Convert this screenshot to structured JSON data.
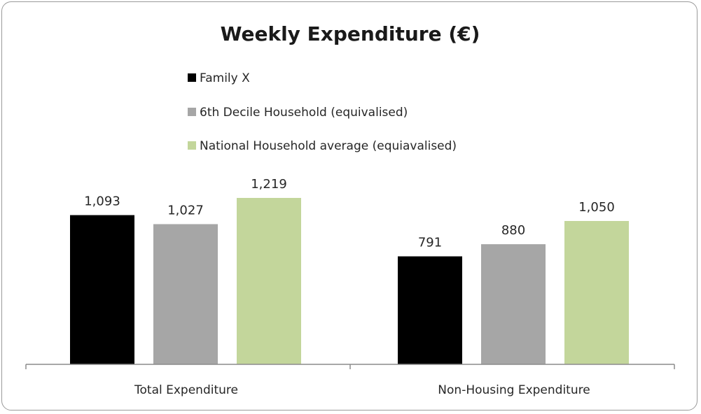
{
  "chart_data": {
    "type": "bar",
    "title": "Weekly Expenditure (€)",
    "categories": [
      "Total Expenditure",
      "Non-Housing Expenditure"
    ],
    "series": [
      {
        "name": "Family X",
        "values": [
          1093,
          791
        ],
        "labels": [
          "1,093",
          "791"
        ],
        "color": "#000000"
      },
      {
        "name": "6th Decile Household (equivalised)",
        "values": [
          1027,
          880
        ],
        "labels": [
          "1,027",
          "880"
        ],
        "color": "#a6a6a6"
      },
      {
        "name": "National Household average (equiavalised)",
        "values": [
          1219,
          1050
        ],
        "labels": [
          "1,219",
          "1,050"
        ],
        "color": "#c3d69b"
      }
    ],
    "ylim": [
      0,
      1500
    ],
    "grid": false,
    "legend_position": "top-left"
  }
}
